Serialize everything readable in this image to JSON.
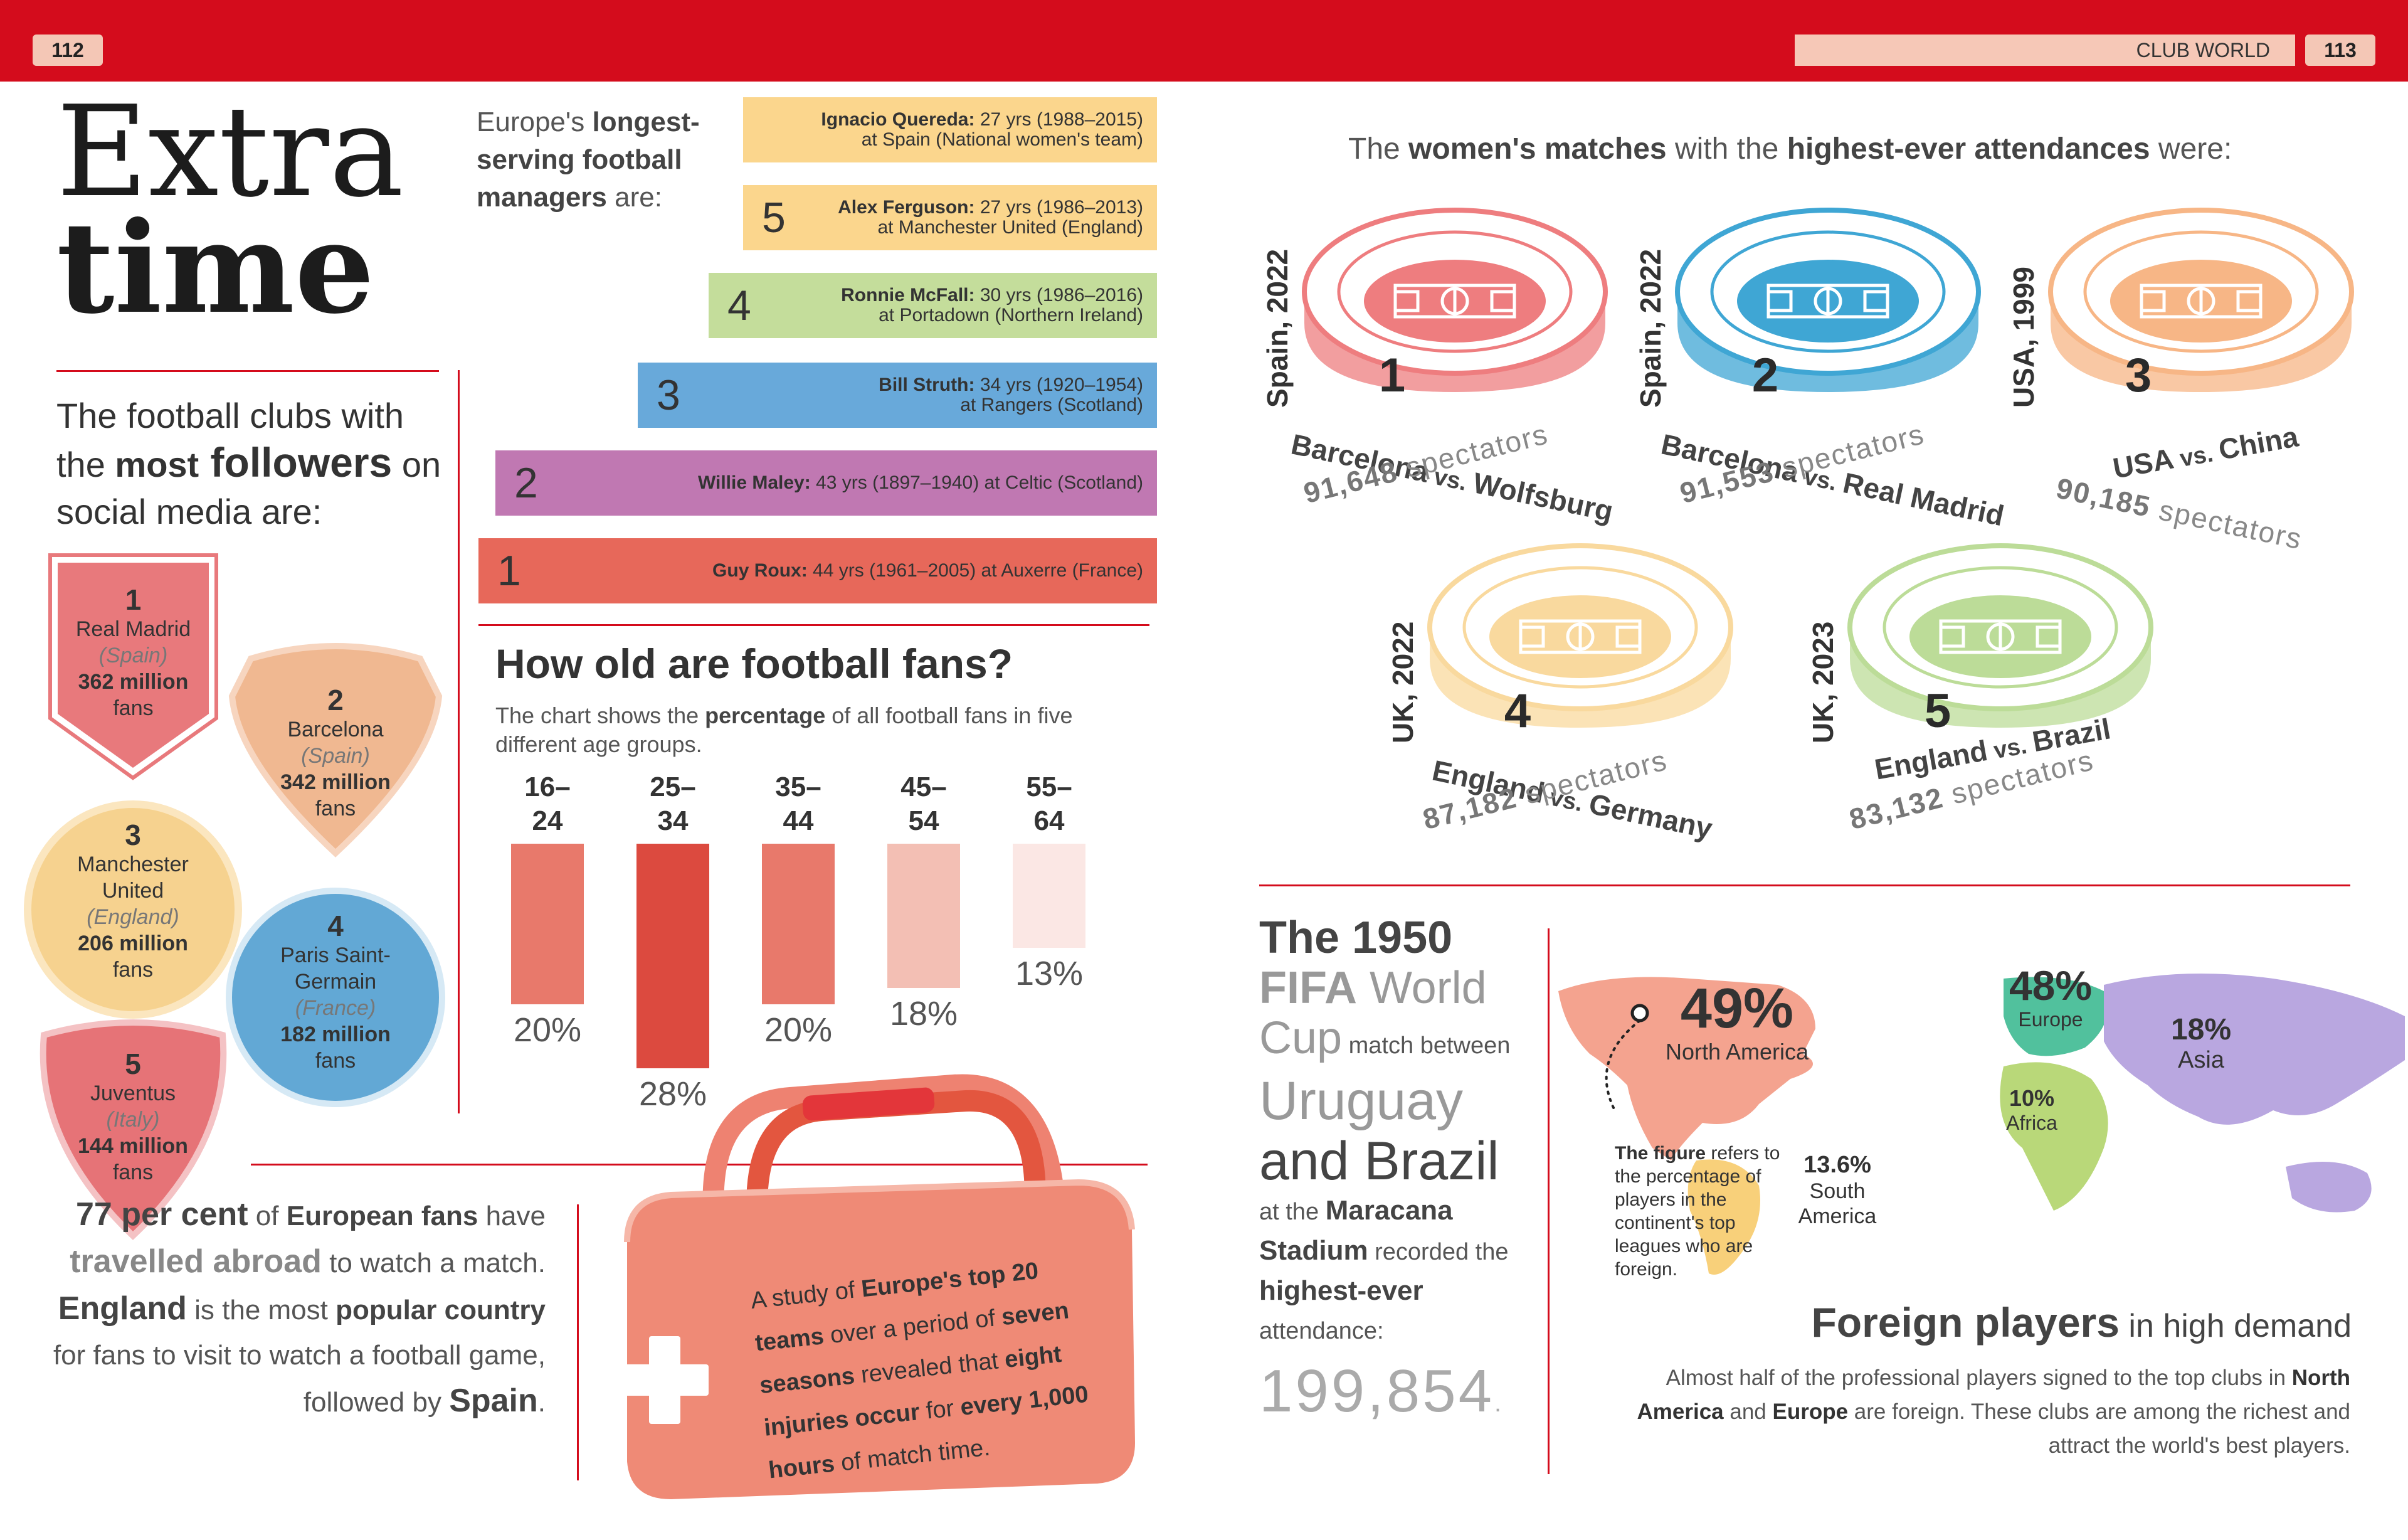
{
  "header": {
    "left_page_number": "112",
    "right_page_number": "113",
    "section_label": "CLUB WORLD"
  },
  "title": {
    "line1": "Extra",
    "line2": "time"
  },
  "followers": {
    "intro_part1": "The football clubs with the ",
    "intro_bold1": "most",
    "intro_bold2": " followers",
    "intro_part2": " on social media are:",
    "clubs": [
      {
        "rank": "1",
        "name": "Real Madrid",
        "country": "(Spain)",
        "followers": "362 million",
        "unit": "fans",
        "color": "#e8797c"
      },
      {
        "rank": "2",
        "name": "Barcelona",
        "country": "(Spain)",
        "followers": "342 million",
        "unit": "fans",
        "color": "#f0b891"
      },
      {
        "rank": "3",
        "name": "Manchester United",
        "country": "(England)",
        "followers": "206 million",
        "unit": "fans",
        "color": "#f6d28f"
      },
      {
        "rank": "4",
        "name": "Paris Saint-Germain",
        "country": "(France)",
        "followers": "182 million",
        "unit": "fans",
        "color": "#62a8d5"
      },
      {
        "rank": "5",
        "name": "Juventus",
        "country": "(Italy)",
        "followers": "144 million",
        "unit": "fans",
        "color": "#e67377"
      }
    ]
  },
  "managers": {
    "intro_a": "Europe's ",
    "intro_b": "longest-serving football managers",
    "intro_c": " are:",
    "items": [
      {
        "rank": "",
        "name": "Ignacio Quereda:",
        "detail1": " 27 yrs (1988–2015)",
        "detail2": "at Spain (National women's team)",
        "color": "#fbd68d"
      },
      {
        "rank": "5",
        "name": "Alex Ferguson:",
        "detail1": " 27 yrs (1986–2013)",
        "detail2": "at Manchester United (England)",
        "color": "#fbd68d"
      },
      {
        "rank": "4",
        "name": "Ronnie McFall:",
        "detail1": " 30 yrs (1986–2016)",
        "detail2": "at Portadown (Northern Ireland)",
        "color": "#c4dd9b"
      },
      {
        "rank": "3",
        "name": "Bill Struth:",
        "detail1": " 34 yrs (1920–1954)",
        "detail2": "at Rangers (Scotland)",
        "color": "#68a9da"
      },
      {
        "rank": "2",
        "name": "Willie Maley:",
        "detail1": " 43 yrs (1897–1940) at Celtic (Scotland)",
        "detail2": "",
        "color": "#c078b2"
      },
      {
        "rank": "1",
        "name": "Guy Roux:",
        "detail1": " 44 yrs (1961–2005) at Auxerre (France)",
        "detail2": "",
        "color": "#e7685a"
      }
    ]
  },
  "ages": {
    "title": "How old are football fans?",
    "subtitle_a": "The chart shows the ",
    "subtitle_b": "percentage",
    "subtitle_c": " of all football fans in five different age groups."
  },
  "chart_data": {
    "type": "bar",
    "categories": [
      "16–24",
      "25–34",
      "35–44",
      "45–54",
      "55–64"
    ],
    "values": [
      20,
      28,
      20,
      18,
      13
    ],
    "labels": [
      "20%",
      "28%",
      "20%",
      "18%",
      "13%"
    ],
    "colors": [
      "#e8796b",
      "#dc4a3f",
      "#e8796b",
      "#f3bfb4",
      "#fbe7e4"
    ],
    "title": "How old are football fans?"
  },
  "travel": {
    "p1": "77 per cent",
    "p2": " of ",
    "p3": "European fans",
    "p4": " have ",
    "p5": "travelled abroad",
    "p6": " to watch a match. ",
    "p7": "England",
    "p8": " is the most ",
    "p9": "popular country",
    "p10": " for fans to visit to watch a football game, followed by ",
    "p11": "Spain",
    "p12": "."
  },
  "injury": {
    "p1": "A study of ",
    "p2": "Europe's top 20 teams",
    "p3": " over a period of ",
    "p4": "seven seasons",
    "p5": " revealed that ",
    "p6": "eight injuries occur",
    "p7": " for ",
    "p8": "every 1,000 hours",
    "p9": " of match time."
  },
  "women": {
    "title_a": "The ",
    "title_b": "women's matches",
    "title_c": " with the ",
    "title_d": "highest-ever attendances",
    "title_e": " were:",
    "matches": [
      {
        "rank": "1",
        "year": "Spain, 2022",
        "team1": "Barcelona",
        "team2": "Wolfsburg",
        "vs": " vs. ",
        "spectators": "91,648",
        "unit": " spectators",
        "color": "#ee7d7f"
      },
      {
        "rank": "2",
        "year": "Spain, 2022",
        "team1": "Barcelona",
        "team2": "Real Madrid",
        "vs": " vs. ",
        "spectators": "91,553",
        "unit": " spectators",
        "color": "#3fa6d4"
      },
      {
        "rank": "3",
        "year": "USA, 1999",
        "team1": "USA",
        "team2": "China",
        "vs": " vs. ",
        "spectators": "90,185",
        "unit": " spectators",
        "color": "#f7b686"
      },
      {
        "rank": "4",
        "year": "UK, 2022",
        "team1": "England",
        "team2": "Germany",
        "vs": " vs. ",
        "spectators": "87,182",
        "unit": " spectators",
        "color": "#f9d99e"
      },
      {
        "rank": "5",
        "year": "UK, 2023",
        "team1": "England",
        "team2": "Brazil",
        "vs": " vs. ",
        "spectators": "83,132",
        "unit": " spectators",
        "color": "#bcdc98"
      }
    ]
  },
  "worldcup": {
    "l1": "The 1950",
    "l2a": "FIFA",
    "l2b": " World",
    "l3a": "Cup",
    "l3b": " match between",
    "l4": "Uruguay",
    "l5": "and Brazil",
    "l6a": "at the ",
    "l6b": "Maracana",
    "l7a": "Stadium",
    "l7b": " recorded the",
    "l8": "highest-ever",
    "l9": "attendance:",
    "number": "199,854",
    "dot": "."
  },
  "foreign": {
    "regions": [
      {
        "pct": "49%",
        "name": "North America"
      },
      {
        "pct": "48%",
        "name": "Europe"
      },
      {
        "pct": "18%",
        "name": "Asia"
      },
      {
        "pct": "10%",
        "name": "Africa"
      },
      {
        "pct": "13.6%",
        "name": "South America"
      }
    ],
    "note_bold": "The figure",
    "note_rest": " refers to the percentage of players in the continent's top leagues who are foreign.",
    "title_bold": "Foreign players",
    "title_rest": " in high demand",
    "body_a": "Almost half of the professional players signed to the top clubs in ",
    "body_b": "North America",
    "body_c": " and ",
    "body_d": "Europe",
    "body_e": " are foreign. These clubs are among the richest and attract the world's best players."
  }
}
